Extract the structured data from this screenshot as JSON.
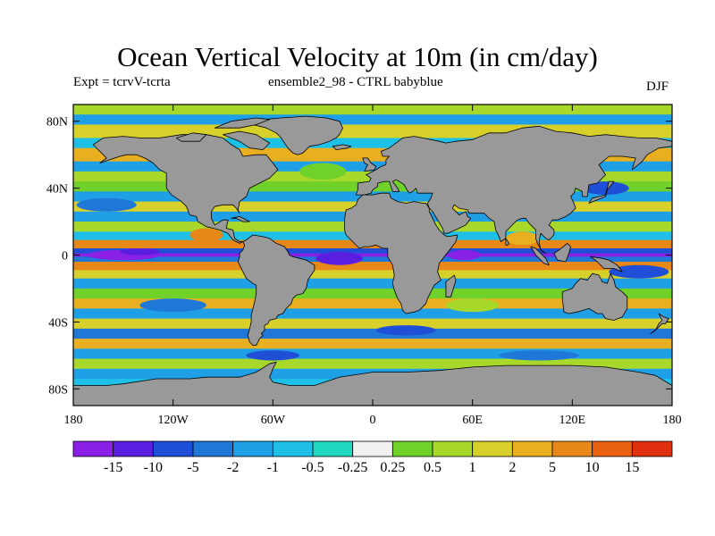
{
  "title": "Ocean Vertical Velocity at 10m (in cm/day)",
  "subtitle_left": "Expt = tcrvV-tcrta",
  "subtitle_center": "ensemble2_98 - CTRL babyblue",
  "subtitle_right": "DJF",
  "map": {
    "projection": "cylindrical equidistant",
    "lon_range": [
      -180,
      180
    ],
    "lat_range": [
      -90,
      90
    ],
    "land_color": "#999999",
    "ocean_field": "ocean vertical velocity difference, filled contours"
  },
  "axes": {
    "y_ticks": [
      {
        "value": 80,
        "label": "80N"
      },
      {
        "value": 40,
        "label": "40N"
      },
      {
        "value": 0,
        "label": "0"
      },
      {
        "value": -40,
        "label": "40S"
      },
      {
        "value": -80,
        "label": "80S"
      }
    ],
    "x_ticks": [
      {
        "value": -180,
        "label": "180"
      },
      {
        "value": -120,
        "label": "120W"
      },
      {
        "value": -60,
        "label": "60W"
      },
      {
        "value": 0,
        "label": "0"
      },
      {
        "value": 60,
        "label": "60E"
      },
      {
        "value": 120,
        "label": "120E"
      },
      {
        "value": 180,
        "label": "180"
      }
    ]
  },
  "colorbar": {
    "levels": [
      "-15",
      "-10",
      "-5",
      "-2",
      "-1",
      "-0.5",
      "-0.25",
      "0.25",
      "0.5",
      "1",
      "2",
      "5",
      "10",
      "15"
    ],
    "colors": [
      "#8a1fe6",
      "#5a1ee0",
      "#1f4fd6",
      "#1f78d8",
      "#1fa0e6",
      "#1fc0e8",
      "#1fd6c0",
      "#f0f0f0",
      "#6fd12a",
      "#a8d82a",
      "#d8d02a",
      "#e8b020",
      "#e88818",
      "#e86010",
      "#e03010"
    ]
  }
}
